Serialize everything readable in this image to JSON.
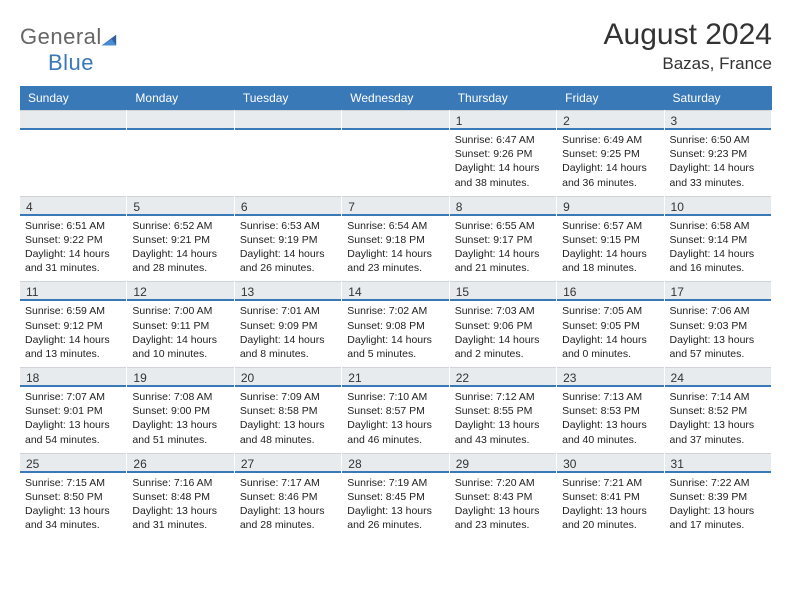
{
  "brand": {
    "part1": "General",
    "part2": "Blue"
  },
  "title": "August 2024",
  "location": "Bazas, France",
  "colors": {
    "header_bg": "#3a79b7",
    "header_text": "#ffffff",
    "date_bar_bg": "#e8ebee",
    "date_bar_border": "#3a79b7",
    "body_text": "#222222"
  },
  "day_names": [
    "Sunday",
    "Monday",
    "Tuesday",
    "Wednesday",
    "Thursday",
    "Friday",
    "Saturday"
  ],
  "start_weekday_index": 4,
  "days": [
    {
      "n": 1,
      "sr": "6:47 AM",
      "ss": "9:26 PM",
      "dl": "14 hours and 38 minutes."
    },
    {
      "n": 2,
      "sr": "6:49 AM",
      "ss": "9:25 PM",
      "dl": "14 hours and 36 minutes."
    },
    {
      "n": 3,
      "sr": "6:50 AM",
      "ss": "9:23 PM",
      "dl": "14 hours and 33 minutes."
    },
    {
      "n": 4,
      "sr": "6:51 AM",
      "ss": "9:22 PM",
      "dl": "14 hours and 31 minutes."
    },
    {
      "n": 5,
      "sr": "6:52 AM",
      "ss": "9:21 PM",
      "dl": "14 hours and 28 minutes."
    },
    {
      "n": 6,
      "sr": "6:53 AM",
      "ss": "9:19 PM",
      "dl": "14 hours and 26 minutes."
    },
    {
      "n": 7,
      "sr": "6:54 AM",
      "ss": "9:18 PM",
      "dl": "14 hours and 23 minutes."
    },
    {
      "n": 8,
      "sr": "6:55 AM",
      "ss": "9:17 PM",
      "dl": "14 hours and 21 minutes."
    },
    {
      "n": 9,
      "sr": "6:57 AM",
      "ss": "9:15 PM",
      "dl": "14 hours and 18 minutes."
    },
    {
      "n": 10,
      "sr": "6:58 AM",
      "ss": "9:14 PM",
      "dl": "14 hours and 16 minutes."
    },
    {
      "n": 11,
      "sr": "6:59 AM",
      "ss": "9:12 PM",
      "dl": "14 hours and 13 minutes."
    },
    {
      "n": 12,
      "sr": "7:00 AM",
      "ss": "9:11 PM",
      "dl": "14 hours and 10 minutes."
    },
    {
      "n": 13,
      "sr": "7:01 AM",
      "ss": "9:09 PM",
      "dl": "14 hours and 8 minutes."
    },
    {
      "n": 14,
      "sr": "7:02 AM",
      "ss": "9:08 PM",
      "dl": "14 hours and 5 minutes."
    },
    {
      "n": 15,
      "sr": "7:03 AM",
      "ss": "9:06 PM",
      "dl": "14 hours and 2 minutes."
    },
    {
      "n": 16,
      "sr": "7:05 AM",
      "ss": "9:05 PM",
      "dl": "14 hours and 0 minutes."
    },
    {
      "n": 17,
      "sr": "7:06 AM",
      "ss": "9:03 PM",
      "dl": "13 hours and 57 minutes."
    },
    {
      "n": 18,
      "sr": "7:07 AM",
      "ss": "9:01 PM",
      "dl": "13 hours and 54 minutes."
    },
    {
      "n": 19,
      "sr": "7:08 AM",
      "ss": "9:00 PM",
      "dl": "13 hours and 51 minutes."
    },
    {
      "n": 20,
      "sr": "7:09 AM",
      "ss": "8:58 PM",
      "dl": "13 hours and 48 minutes."
    },
    {
      "n": 21,
      "sr": "7:10 AM",
      "ss": "8:57 PM",
      "dl": "13 hours and 46 minutes."
    },
    {
      "n": 22,
      "sr": "7:12 AM",
      "ss": "8:55 PM",
      "dl": "13 hours and 43 minutes."
    },
    {
      "n": 23,
      "sr": "7:13 AM",
      "ss": "8:53 PM",
      "dl": "13 hours and 40 minutes."
    },
    {
      "n": 24,
      "sr": "7:14 AM",
      "ss": "8:52 PM",
      "dl": "13 hours and 37 minutes."
    },
    {
      "n": 25,
      "sr": "7:15 AM",
      "ss": "8:50 PM",
      "dl": "13 hours and 34 minutes."
    },
    {
      "n": 26,
      "sr": "7:16 AM",
      "ss": "8:48 PM",
      "dl": "13 hours and 31 minutes."
    },
    {
      "n": 27,
      "sr": "7:17 AM",
      "ss": "8:46 PM",
      "dl": "13 hours and 28 minutes."
    },
    {
      "n": 28,
      "sr": "7:19 AM",
      "ss": "8:45 PM",
      "dl": "13 hours and 26 minutes."
    },
    {
      "n": 29,
      "sr": "7:20 AM",
      "ss": "8:43 PM",
      "dl": "13 hours and 23 minutes."
    },
    {
      "n": 30,
      "sr": "7:21 AM",
      "ss": "8:41 PM",
      "dl": "13 hours and 20 minutes."
    },
    {
      "n": 31,
      "sr": "7:22 AM",
      "ss": "8:39 PM",
      "dl": "13 hours and 17 minutes."
    }
  ],
  "labels": {
    "sunrise": "Sunrise:",
    "sunset": "Sunset:",
    "daylight": "Daylight:"
  }
}
